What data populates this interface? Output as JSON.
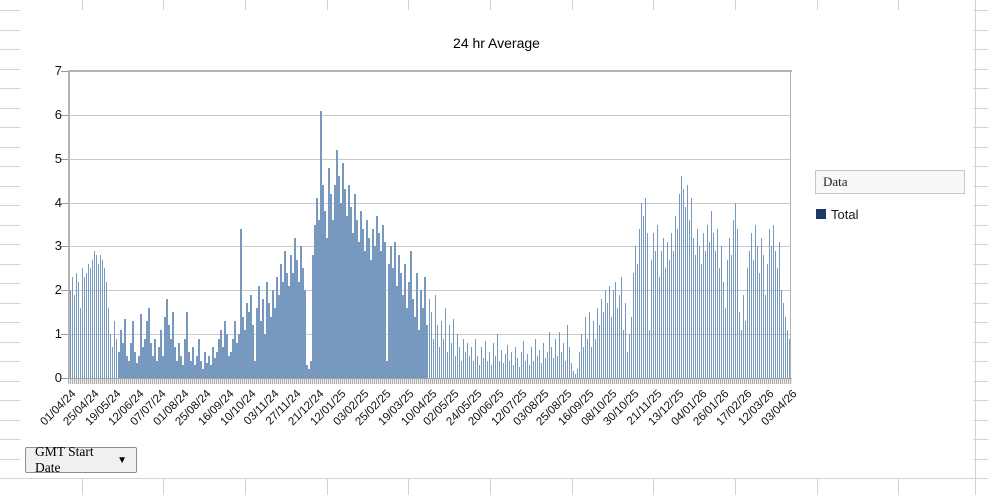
{
  "chart_data": {
    "type": "bar",
    "title": "24 hr Average",
    "xlabel": "",
    "ylabel": "",
    "ylim": [
      0,
      7
    ],
    "yticks": [
      "0",
      "1",
      "2",
      "3",
      "4",
      "5",
      "6",
      "7"
    ],
    "grid": "horizontal",
    "legend_position": "right",
    "x_tick_labels": [
      "01/04/24",
      "25/04/24",
      "19/05/24",
      "12/06/24",
      "07/07/24",
      "01/08/24",
      "25/08/24",
      "16/09/24",
      "10/10/24",
      "03/11/24",
      "27/11/24",
      "21/12/24",
      "12/01/25",
      "03/02/25",
      "25/02/25",
      "19/03/25",
      "10/04/25",
      "02/05/25",
      "24/05/25",
      "20/06/25",
      "12/07/25",
      "03/08/25",
      "25/08/25",
      "16/09/25",
      "08/10/25",
      "30/10/25",
      "21/11/25",
      "13/12/25",
      "04/01/26",
      "26/01/26",
      "17/02/26",
      "12/03/26",
      "03/04/26"
    ],
    "series": [
      {
        "name": "Total",
        "legend_color": "#1F3864",
        "bar_color": "#7799BF",
        "values": [
          2.0,
          2.3,
          1.9,
          2.4,
          2.2,
          1.6,
          2.5,
          2.3,
          2.4,
          2.6,
          2.5,
          2.7,
          2.9,
          2.8,
          2.6,
          2.8,
          2.7,
          2.5,
          2.2,
          1.6,
          1.0,
          0.7,
          1.3,
          0.9,
          0.6,
          1.1,
          0.8,
          1.35,
          0.5,
          0.4,
          0.8,
          1.3,
          0.6,
          0.35,
          0.5,
          1.45,
          0.7,
          0.9,
          1.3,
          1.6,
          0.8,
          0.5,
          0.9,
          0.4,
          0.7,
          1.1,
          0.5,
          1.4,
          1.8,
          1.2,
          0.9,
          1.5,
          0.7,
          0.4,
          0.8,
          0.5,
          0.3,
          0.9,
          1.5,
          0.6,
          0.4,
          0.7,
          0.3,
          0.5,
          0.9,
          0.4,
          0.2,
          0.6,
          0.35,
          0.5,
          0.3,
          0.7,
          0.45,
          0.6,
          0.9,
          1.1,
          0.7,
          1.3,
          1.0,
          0.5,
          0.6,
          0.9,
          1.3,
          0.8,
          1.0,
          3.4,
          1.4,
          1.1,
          1.7,
          1.5,
          1.9,
          1.2,
          0.4,
          1.6,
          2.1,
          1.3,
          1.8,
          1.0,
          2.2,
          1.7,
          1.4,
          2.0,
          1.6,
          2.3,
          1.9,
          2.6,
          2.2,
          2.9,
          2.4,
          2.1,
          2.8,
          2.4,
          3.2,
          2.7,
          2.2,
          3.0,
          2.5,
          2.0,
          0.3,
          0.2,
          0.4,
          2.8,
          3.5,
          4.1,
          3.6,
          6.1,
          4.4,
          3.8,
          3.2,
          4.8,
          4.2,
          3.6,
          4.4,
          5.2,
          4.6,
          4.0,
          4.9,
          4.3,
          3.7,
          4.4,
          3.9,
          3.3,
          4.2,
          3.6,
          3.1,
          3.8,
          3.4,
          2.9,
          3.6,
          3.2,
          2.7,
          3.4,
          3.0,
          3.7,
          3.3,
          2.9,
          3.5,
          3.1,
          0.4,
          2.6,
          3.0,
          2.5,
          3.1,
          2.1,
          2.8,
          2.4,
          1.9,
          2.6,
          1.6,
          2.2,
          2.9,
          1.8,
          1.4,
          2.4,
          1.1,
          2.0,
          1.6,
          2.3,
          1.2,
          1.8,
          1.5,
          0.9,
          1.9,
          1.2,
          0.7,
          1.3,
          0.9,
          1.6,
          0.6,
          1.2,
          0.8,
          1.35,
          0.5,
          1.0,
          0.7,
          0.4,
          0.9,
          0.6,
          0.8,
          0.5,
          0.7,
          0.4,
          0.9,
          0.5,
          0.3,
          0.7,
          0.45,
          0.85,
          0.4,
          0.6,
          0.3,
          0.8,
          0.5,
          1.0,
          0.4,
          0.65,
          0.35,
          0.55,
          0.75,
          0.4,
          0.6,
          0.3,
          0.7,
          0.45,
          0.25,
          0.6,
          0.85,
          0.4,
          0.55,
          0.3,
          0.7,
          0.4,
          0.9,
          0.5,
          0.65,
          0.35,
          0.8,
          0.45,
          0.6,
          1.05,
          0.7,
          0.45,
          0.9,
          0.5,
          1.05,
          0.6,
          0.8,
          0.4,
          1.2,
          0.7,
          0.35,
          0.15,
          0.1,
          0.2,
          0.6,
          1.0,
          0.7,
          1.4,
          0.9,
          1.5,
          0.7,
          1.3,
          0.9,
          1.6,
          1.2,
          1.8,
          1.5,
          2.0,
          1.7,
          2.1,
          1.4,
          2.0,
          2.2,
          1.6,
          1.9,
          2.3,
          1.1,
          1.7,
          0.6,
          1.0,
          1.4,
          2.4,
          3.0,
          2.6,
          3.4,
          4.0,
          3.7,
          4.1,
          3.3,
          1.1,
          2.7,
          3.3,
          2.9,
          3.5,
          2.3,
          2.9,
          3.2,
          2.5,
          3.1,
          2.7,
          3.3,
          2.9,
          3.7,
          3.4,
          4.2,
          4.6,
          4.3,
          3.9,
          4.4,
          3.6,
          4.1,
          3.2,
          2.8,
          3.4,
          3.0,
          2.6,
          3.3,
          2.9,
          3.5,
          3.1,
          3.8,
          3.3,
          2.9,
          3.4,
          2.5,
          3.0,
          2.2,
          1.6,
          2.7,
          3.2,
          2.8,
          3.6,
          4.0,
          3.4,
          1.5,
          1.1,
          1.9,
          1.3,
          2.5,
          2.9,
          3.3,
          2.7,
          3.5,
          3.0,
          2.4,
          3.2,
          2.8,
          1.9,
          2.6,
          3.4,
          3.0,
          3.5,
          2.9,
          2.5,
          3.1,
          2.0,
          1.7,
          1.4,
          1.1,
          0.9
        ]
      }
    ]
  },
  "legend": {
    "field_button": "Data"
  },
  "filter": {
    "label": "GMT Start Date",
    "icon": "▼"
  }
}
